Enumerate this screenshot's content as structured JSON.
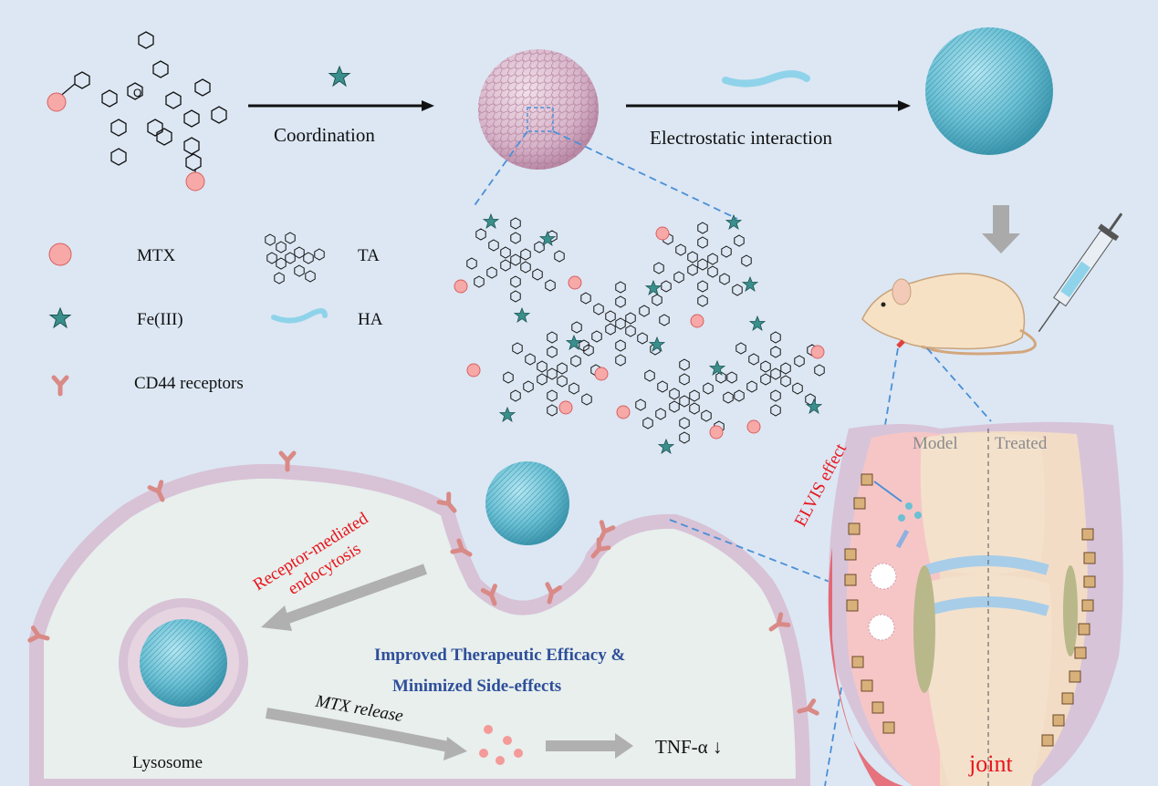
{
  "top": {
    "step1_label": "Coordination",
    "step2_label": "Electrostatic interaction"
  },
  "legend": {
    "mtx": "MTX",
    "ta": "TA",
    "fe": "Fe(III)",
    "ha": "HA",
    "cd44": "CD44 receptors"
  },
  "cell": {
    "endocytosis_line1": "Receptor-mediated",
    "endocytosis_line2": "endocytosis",
    "efficacy_line1": "Improved Therapeutic Efficacy &",
    "efficacy_line2": "Minimized Side-effects",
    "mtx_release": "MTX release",
    "lysosome": "Lysosome",
    "tnf": "TNF-α ↓"
  },
  "joint": {
    "elvis": "ELVIS effect",
    "model": "Model",
    "treated": "Treated",
    "joint_label": "joint"
  },
  "colors": {
    "background": "#dce7f3",
    "mtx": "#f7a9a8",
    "fe": "#3a8f8c",
    "ha": "#8fd3ea",
    "nanoparticle": "#6cc0d4",
    "receptor": "#d98a86",
    "membrane": "#d8c2d6",
    "accent_red": "#e8141b",
    "accent_blue": "#2f4f9a"
  }
}
